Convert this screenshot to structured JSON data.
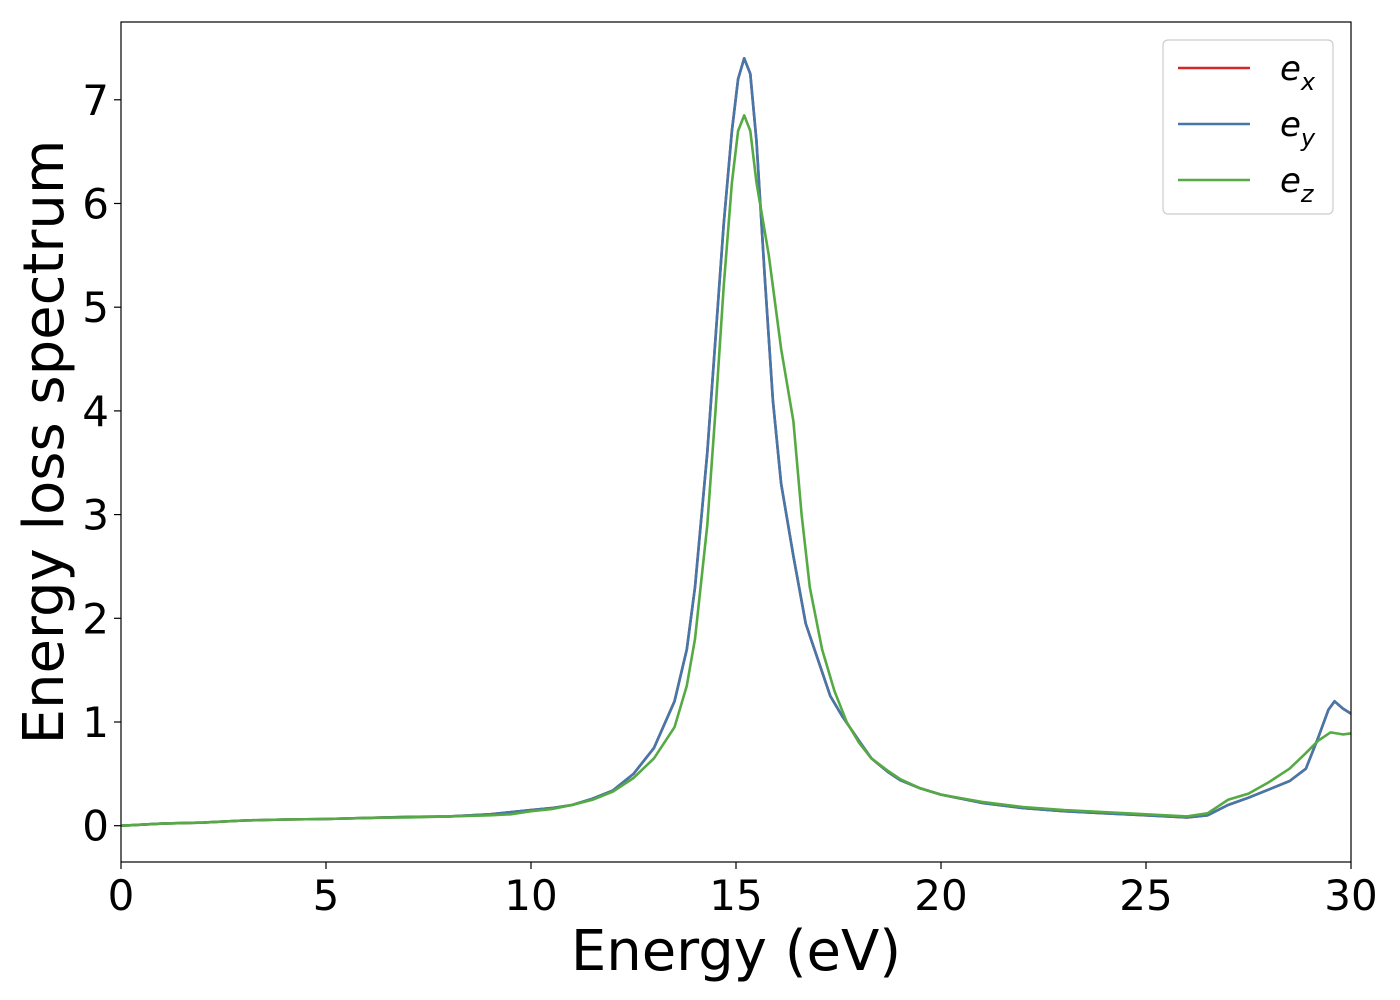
{
  "chart_data": {
    "type": "line",
    "xlabel": "Energy (eV)",
    "ylabel": "Energy loss spectrum",
    "xlim": [
      0,
      30
    ],
    "ylim": [
      -0.35,
      7.75
    ],
    "x_ticks": [
      "0",
      "5",
      "10",
      "15",
      "20",
      "25",
      "30"
    ],
    "y_ticks": [
      "0",
      "1",
      "2",
      "3",
      "4",
      "5",
      "6",
      "7"
    ],
    "grid": false,
    "legend_position": "top-right",
    "series": [
      {
        "name": "e_x",
        "legend": {
          "base": "e",
          "sub": "x"
        },
        "color": "#d62728",
        "points": [
          [
            0,
            0
          ],
          [
            1,
            0.02
          ],
          [
            2,
            0.03
          ],
          [
            3,
            0.05
          ],
          [
            4,
            0.06
          ],
          [
            5,
            0.065
          ],
          [
            6,
            0.075
          ],
          [
            7,
            0.085
          ],
          [
            8,
            0.09
          ],
          [
            9,
            0.11
          ],
          [
            9.5,
            0.13
          ],
          [
            10,
            0.15
          ],
          [
            10.5,
            0.17
          ],
          [
            11,
            0.2
          ],
          [
            11.5,
            0.26
          ],
          [
            12,
            0.34
          ],
          [
            12.5,
            0.5
          ],
          [
            13,
            0.75
          ],
          [
            13.5,
            1.2
          ],
          [
            13.8,
            1.7
          ],
          [
            14,
            2.3
          ],
          [
            14.3,
            3.6
          ],
          [
            14.5,
            4.7
          ],
          [
            14.7,
            5.8
          ],
          [
            14.9,
            6.7
          ],
          [
            15.05,
            7.2
          ],
          [
            15.2,
            7.4
          ],
          [
            15.35,
            7.25
          ],
          [
            15.5,
            6.6
          ],
          [
            15.7,
            5.3
          ],
          [
            15.9,
            4.1
          ],
          [
            16.1,
            3.3
          ],
          [
            16.4,
            2.6
          ],
          [
            16.7,
            1.95
          ],
          [
            17,
            1.6
          ],
          [
            17.3,
            1.25
          ],
          [
            17.6,
            1.05
          ],
          [
            18,
            0.82
          ],
          [
            18.3,
            0.65
          ],
          [
            18.7,
            0.52
          ],
          [
            19,
            0.44
          ],
          [
            19.5,
            0.36
          ],
          [
            20,
            0.3
          ],
          [
            21,
            0.22
          ],
          [
            22,
            0.17
          ],
          [
            23,
            0.14
          ],
          [
            24,
            0.12
          ],
          [
            25,
            0.1
          ],
          [
            26,
            0.08
          ],
          [
            26.5,
            0.1
          ],
          [
            27,
            0.2
          ],
          [
            27.5,
            0.27
          ],
          [
            28,
            0.35
          ],
          [
            28.5,
            0.43
          ],
          [
            28.9,
            0.55
          ],
          [
            29.2,
            0.85
          ],
          [
            29.45,
            1.12
          ],
          [
            29.6,
            1.2
          ],
          [
            29.8,
            1.13
          ],
          [
            30,
            1.08
          ]
        ]
      },
      {
        "name": "e_y",
        "legend": {
          "base": "e",
          "sub": "y"
        },
        "color": "#4477aa",
        "points": [
          [
            0,
            0
          ],
          [
            1,
            0.02
          ],
          [
            2,
            0.03
          ],
          [
            3,
            0.05
          ],
          [
            4,
            0.06
          ],
          [
            5,
            0.065
          ],
          [
            6,
            0.075
          ],
          [
            7,
            0.085
          ],
          [
            8,
            0.09
          ],
          [
            9,
            0.11
          ],
          [
            9.5,
            0.13
          ],
          [
            10,
            0.15
          ],
          [
            10.5,
            0.17
          ],
          [
            11,
            0.2
          ],
          [
            11.5,
            0.26
          ],
          [
            12,
            0.34
          ],
          [
            12.5,
            0.5
          ],
          [
            13,
            0.75
          ],
          [
            13.5,
            1.2
          ],
          [
            13.8,
            1.7
          ],
          [
            14,
            2.3
          ],
          [
            14.3,
            3.6
          ],
          [
            14.5,
            4.7
          ],
          [
            14.7,
            5.8
          ],
          [
            14.9,
            6.7
          ],
          [
            15.05,
            7.2
          ],
          [
            15.2,
            7.4
          ],
          [
            15.35,
            7.25
          ],
          [
            15.5,
            6.6
          ],
          [
            15.7,
            5.3
          ],
          [
            15.9,
            4.1
          ],
          [
            16.1,
            3.3
          ],
          [
            16.4,
            2.6
          ],
          [
            16.7,
            1.95
          ],
          [
            17,
            1.6
          ],
          [
            17.3,
            1.25
          ],
          [
            17.6,
            1.05
          ],
          [
            18,
            0.82
          ],
          [
            18.3,
            0.65
          ],
          [
            18.7,
            0.52
          ],
          [
            19,
            0.44
          ],
          [
            19.5,
            0.36
          ],
          [
            20,
            0.3
          ],
          [
            21,
            0.22
          ],
          [
            22,
            0.17
          ],
          [
            23,
            0.14
          ],
          [
            24,
            0.12
          ],
          [
            25,
            0.1
          ],
          [
            26,
            0.08
          ],
          [
            26.5,
            0.1
          ],
          [
            27,
            0.2
          ],
          [
            27.5,
            0.27
          ],
          [
            28,
            0.35
          ],
          [
            28.5,
            0.43
          ],
          [
            28.9,
            0.55
          ],
          [
            29.2,
            0.85
          ],
          [
            29.45,
            1.12
          ],
          [
            29.6,
            1.2
          ],
          [
            29.8,
            1.13
          ],
          [
            30,
            1.08
          ]
        ]
      },
      {
        "name": "e_z",
        "legend": {
          "base": "e",
          "sub": "z"
        },
        "color": "#55aa44",
        "points": [
          [
            0,
            0
          ],
          [
            1,
            0.02
          ],
          [
            2,
            0.03
          ],
          [
            3,
            0.05
          ],
          [
            4,
            0.06
          ],
          [
            5,
            0.065
          ],
          [
            6,
            0.075
          ],
          [
            7,
            0.08
          ],
          [
            8,
            0.09
          ],
          [
            9,
            0.1
          ],
          [
            9.5,
            0.11
          ],
          [
            10,
            0.14
          ],
          [
            10.5,
            0.16
          ],
          [
            11,
            0.2
          ],
          [
            11.5,
            0.25
          ],
          [
            12,
            0.33
          ],
          [
            12.5,
            0.46
          ],
          [
            13,
            0.65
          ],
          [
            13.5,
            0.95
          ],
          [
            13.8,
            1.35
          ],
          [
            14,
            1.8
          ],
          [
            14.3,
            2.9
          ],
          [
            14.5,
            4.0
          ],
          [
            14.7,
            5.2
          ],
          [
            14.9,
            6.2
          ],
          [
            15.05,
            6.7
          ],
          [
            15.2,
            6.85
          ],
          [
            15.35,
            6.7
          ],
          [
            15.5,
            6.2
          ],
          [
            15.8,
            5.5
          ],
          [
            16.1,
            4.6
          ],
          [
            16.4,
            3.9
          ],
          [
            16.6,
            3.0
          ],
          [
            16.8,
            2.3
          ],
          [
            17.1,
            1.7
          ],
          [
            17.4,
            1.3
          ],
          [
            17.7,
            1.0
          ],
          [
            18,
            0.8
          ],
          [
            18.3,
            0.65
          ],
          [
            18.7,
            0.53
          ],
          [
            19,
            0.45
          ],
          [
            19.5,
            0.36
          ],
          [
            20,
            0.3
          ],
          [
            21,
            0.23
          ],
          [
            22,
            0.18
          ],
          [
            23,
            0.15
          ],
          [
            24,
            0.13
          ],
          [
            25,
            0.11
          ],
          [
            26,
            0.09
          ],
          [
            26.5,
            0.12
          ],
          [
            27,
            0.25
          ],
          [
            27.5,
            0.31
          ],
          [
            28,
            0.42
          ],
          [
            28.5,
            0.55
          ],
          [
            28.9,
            0.7
          ],
          [
            29.2,
            0.82
          ],
          [
            29.5,
            0.9
          ],
          [
            29.8,
            0.88
          ],
          [
            30,
            0.89
          ]
        ]
      }
    ]
  }
}
